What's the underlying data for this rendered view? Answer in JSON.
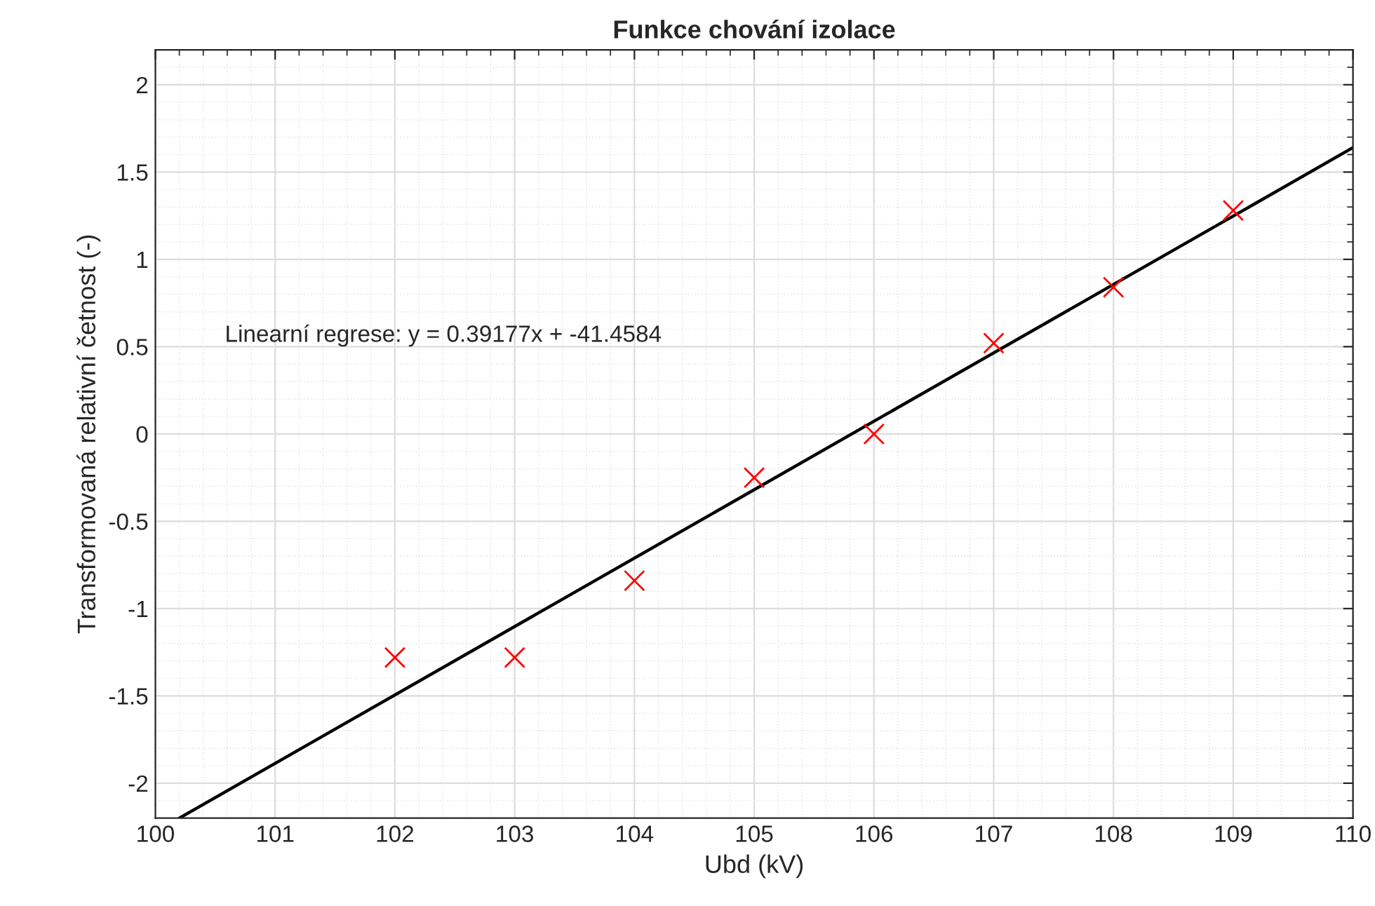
{
  "chart_data": {
    "type": "scatter",
    "title": "Funkce chování izolace",
    "xlabel": "Ubd (kV)",
    "ylabel": "Transformovaná relativní četnost (-)",
    "annotations": [
      "Linearní regrese: y = 0.39177x + -41.4584"
    ],
    "series": [
      {
        "color": "#ff0000",
        "marker": "cross",
        "x": [
          102,
          103,
          104,
          105,
          106,
          107,
          108,
          109
        ],
        "values": [
          -1.28,
          -1.28,
          -0.84,
          -0.25,
          0,
          0.52,
          0.84,
          1.28
        ]
      },
      {
        "type": "line",
        "color": "#000000",
        "marker": "none",
        "line_style": "solid",
        "x": [
          100.2,
          110
        ],
        "values": [
          -2.2,
          1.64
        ]
      }
    ],
    "xlim": [
      100,
      110
    ],
    "xticks": [
      100,
      101,
      102,
      103,
      104,
      105,
      106,
      107,
      108,
      109,
      110
    ],
    "ylim": [
      -2.2,
      2.2
    ],
    "yticks": [
      -2,
      -1.5,
      -1,
      -0.5,
      0,
      0.5,
      1,
      1.5,
      2
    ],
    "grid": true
  }
}
